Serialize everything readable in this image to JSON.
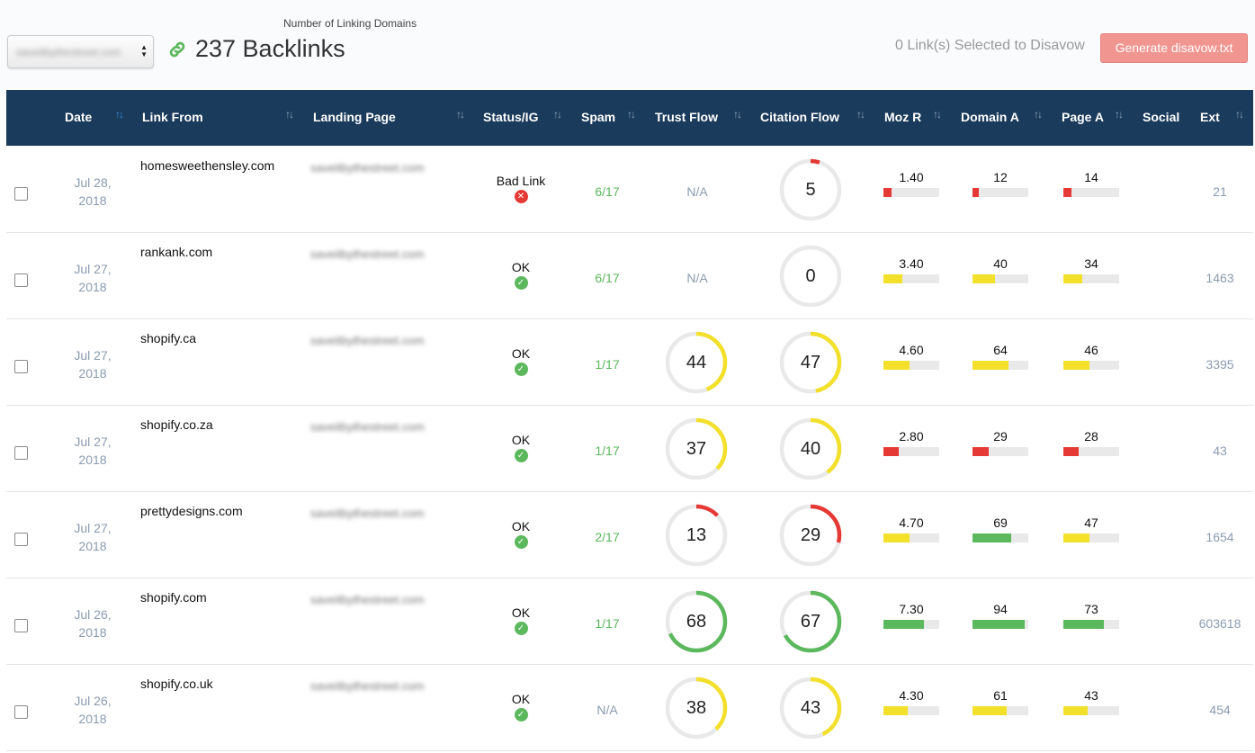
{
  "header": {
    "domain_select_value": "saveitbythestreet.com",
    "linking_caption": "Number of Linking Domains",
    "backlinks_title": "237 Backlinks",
    "selected_text": "0 Link(s) Selected to Disavow",
    "generate_button": "Generate disavow.txt"
  },
  "columns": [
    "Date",
    "Link From",
    "Landing Page",
    "Status/IG",
    "Spam",
    "Trust Flow",
    "Citation Flow",
    "Moz R",
    "Domain A",
    "Page A",
    "Social",
    "Ext"
  ],
  "landing_page_text": "saveitbythestreet.com",
  "na_label": "N/A",
  "colors": {
    "red": "#e53935",
    "yellow": "#f2e02b",
    "green": "#5cb85c",
    "header": "#1b3b5c"
  },
  "rows": [
    {
      "date_line1": "Jul 28,",
      "date_line2": "2018",
      "link_from": "homesweethensley.com",
      "status": "Bad Link",
      "status_ok": false,
      "spam": "6/17",
      "trust_flow": null,
      "trust_color": "",
      "citation_flow": 5,
      "citation_color": "red",
      "moz_r": "1.40",
      "moz_r_fill": 0.14,
      "moz_r_color": "red",
      "domain_a": "12",
      "domain_a_fill": 0.12,
      "domain_a_color": "red",
      "page_a": "14",
      "page_a_fill": 0.14,
      "page_a_color": "red",
      "ext": "21"
    },
    {
      "date_line1": "Jul 27,",
      "date_line2": "2018",
      "link_from": "rankank.com",
      "status": "OK",
      "status_ok": true,
      "spam": "6/17",
      "trust_flow": null,
      "trust_color": "",
      "citation_flow": 0,
      "citation_color": "red",
      "moz_r": "3.40",
      "moz_r_fill": 0.34,
      "moz_r_color": "yellow",
      "domain_a": "40",
      "domain_a_fill": 0.4,
      "domain_a_color": "yellow",
      "page_a": "34",
      "page_a_fill": 0.34,
      "page_a_color": "yellow",
      "ext": "1463"
    },
    {
      "date_line1": "Jul 27,",
      "date_line2": "2018",
      "link_from": "shopify.ca",
      "status": "OK",
      "status_ok": true,
      "spam": "1/17",
      "trust_flow": 44,
      "trust_color": "yellow",
      "citation_flow": 47,
      "citation_color": "yellow",
      "moz_r": "4.60",
      "moz_r_fill": 0.46,
      "moz_r_color": "yellow",
      "domain_a": "64",
      "domain_a_fill": 0.64,
      "domain_a_color": "yellow",
      "page_a": "46",
      "page_a_fill": 0.46,
      "page_a_color": "yellow",
      "ext": "3395"
    },
    {
      "date_line1": "Jul 27,",
      "date_line2": "2018",
      "link_from": "shopify.co.za",
      "status": "OK",
      "status_ok": true,
      "spam": "1/17",
      "trust_flow": 37,
      "trust_color": "yellow",
      "citation_flow": 40,
      "citation_color": "yellow",
      "moz_r": "2.80",
      "moz_r_fill": 0.28,
      "moz_r_color": "red",
      "domain_a": "29",
      "domain_a_fill": 0.29,
      "domain_a_color": "red",
      "page_a": "28",
      "page_a_fill": 0.28,
      "page_a_color": "red",
      "ext": "43"
    },
    {
      "date_line1": "Jul 27,",
      "date_line2": "2018",
      "link_from": "prettydesigns.com",
      "status": "OK",
      "status_ok": true,
      "spam": "2/17",
      "trust_flow": 13,
      "trust_color": "red",
      "citation_flow": 29,
      "citation_color": "red",
      "moz_r": "4.70",
      "moz_r_fill": 0.47,
      "moz_r_color": "yellow",
      "domain_a": "69",
      "domain_a_fill": 0.69,
      "domain_a_color": "green",
      "page_a": "47",
      "page_a_fill": 0.47,
      "page_a_color": "yellow",
      "ext": "1654"
    },
    {
      "date_line1": "Jul 26,",
      "date_line2": "2018",
      "link_from": "shopify.com",
      "status": "OK",
      "status_ok": true,
      "spam": "1/17",
      "trust_flow": 68,
      "trust_color": "green",
      "citation_flow": 67,
      "citation_color": "green",
      "moz_r": "7.30",
      "moz_r_fill": 0.73,
      "moz_r_color": "green",
      "domain_a": "94",
      "domain_a_fill": 0.94,
      "domain_a_color": "green",
      "page_a": "73",
      "page_a_fill": 0.73,
      "page_a_color": "green",
      "ext": "603618"
    },
    {
      "date_line1": "Jul 26,",
      "date_line2": "2018",
      "link_from": "shopify.co.uk",
      "status": "OK",
      "status_ok": true,
      "spam": "N/A",
      "trust_flow": 38,
      "trust_color": "yellow",
      "citation_flow": 43,
      "citation_color": "yellow",
      "moz_r": "4.30",
      "moz_r_fill": 0.43,
      "moz_r_color": "yellow",
      "domain_a": "61",
      "domain_a_fill": 0.61,
      "domain_a_color": "yellow",
      "page_a": "43",
      "page_a_fill": 0.43,
      "page_a_color": "yellow",
      "ext": "454"
    }
  ]
}
